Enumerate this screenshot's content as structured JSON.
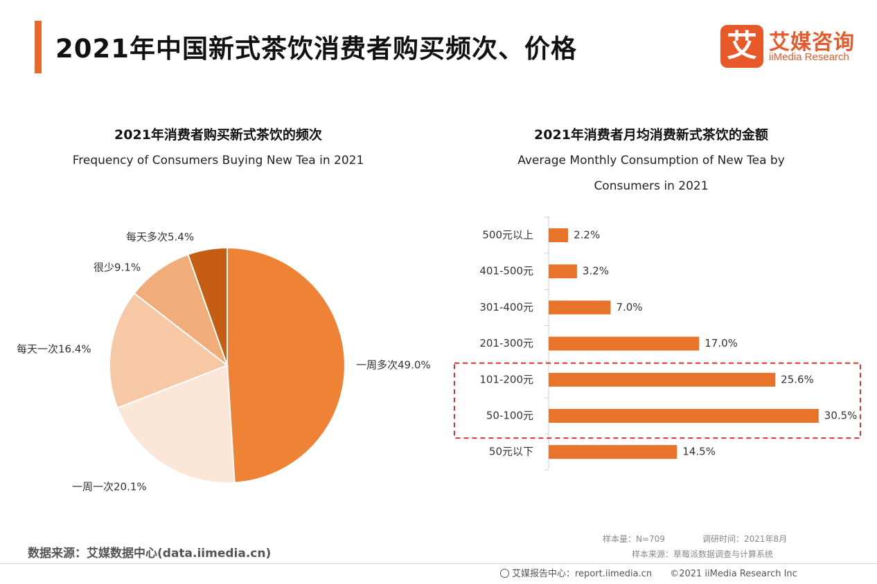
{
  "header": {
    "title": "2021年中国新式茶饮消费者购买频次、价格",
    "logo_mark": "艾",
    "logo_cn": "艾媒咨询",
    "logo_en": "iiMedia Research",
    "accent_color": "#e8692a"
  },
  "chart_data": [
    {
      "type": "pie",
      "title": "2021年消费者购买新式茶饮的频次",
      "subtitle": "Frequency of Consumers Buying New Tea in 2021",
      "slices": [
        {
          "label": "一周多次49.0%",
          "value": 49.0,
          "color": "#ee8235"
        },
        {
          "label": "一周一次20.1%",
          "value": 20.1,
          "color": "#fbe6d8"
        },
        {
          "label": "每天一次16.4%",
          "value": 16.4,
          "color": "#f7c8a5"
        },
        {
          "label": "很少9.1%",
          "value": 9.1,
          "color": "#f0ad7a"
        },
        {
          "label": "每天多次5.4%",
          "value": 5.4,
          "color": "#c55e14"
        }
      ]
    },
    {
      "type": "bar",
      "orientation": "horizontal",
      "title": "2021年消费者月均消费新式茶饮的金额",
      "subtitle_lines": [
        "Average Monthly Consumption of New Tea by",
        "Consumers in 2021"
      ],
      "categories": [
        "500元以上",
        "401-500元",
        "301-400元",
        "201-300元",
        "101-200元",
        "50-100元",
        "50元以下"
      ],
      "values": [
        2.2,
        3.2,
        7.0,
        17.0,
        25.6,
        30.5,
        14.5
      ],
      "value_labels": [
        "2.2%",
        "3.2%",
        "7.0%",
        "17.0%",
        "25.6%",
        "30.5%",
        "14.5%"
      ],
      "highlighted_categories": [
        "101-200元",
        "50-100元"
      ],
      "bar_color": "#e8742c",
      "highlight_color": "#d9312b"
    }
  ],
  "footer": {
    "source": "数据来源：艾媒数据中心(data.iimedia.cn)",
    "sample_size": "样本量：N=709",
    "survey_time": "调研时间：2021年8月",
    "sample_source": "样本来源：草莓派数据调查与计算系统",
    "report_center": "艾媒报告中心：report.iimedia.cn",
    "copyright": "©2021  iiMedia Research  Inc"
  }
}
